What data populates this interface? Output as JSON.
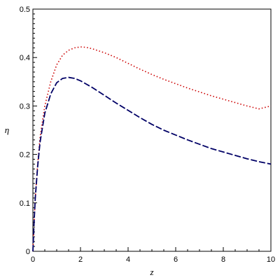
{
  "chart_data": {
    "type": "line",
    "title": "",
    "xlabel": "z",
    "ylabel": "η",
    "xlim": [
      0,
      10
    ],
    "ylim": [
      0,
      0.5
    ],
    "x_ticks": [
      "0",
      "2",
      "4",
      "6",
      "8",
      "10"
    ],
    "y_ticks": [
      "0",
      "0.1",
      "0.2",
      "0.3",
      "0.4",
      "0.5"
    ],
    "grid": false,
    "legend": "none",
    "series": [
      {
        "style": "dotted",
        "color": "#cc0000",
        "x": [
          0,
          0.05,
          0.1,
          0.2,
          0.3,
          0.5,
          0.75,
          1.0,
          1.25,
          1.5,
          1.75,
          2.0,
          2.25,
          2.5,
          3.0,
          3.5,
          4.0,
          4.5,
          5.0,
          5.5,
          6.0,
          6.5,
          7.0,
          7.5,
          8.0,
          8.5,
          9.0,
          9.5,
          10.0
        ],
        "y": [
          0.0,
          0.06,
          0.11,
          0.18,
          0.235,
          0.3,
          0.35,
          0.385,
          0.405,
          0.415,
          0.42,
          0.422,
          0.421,
          0.418,
          0.41,
          0.4,
          0.388,
          0.376,
          0.365,
          0.355,
          0.346,
          0.337,
          0.329,
          0.321,
          0.314,
          0.307,
          0.3,
          0.294,
          0.3
        ]
      },
      {
        "style": "dashed",
        "color": "#000066",
        "x": [
          0,
          0.05,
          0.1,
          0.2,
          0.3,
          0.5,
          0.75,
          1.0,
          1.25,
          1.5,
          1.75,
          2.0,
          2.5,
          3.0,
          3.5,
          4.0,
          4.5,
          5.0,
          5.5,
          6.0,
          6.5,
          7.0,
          7.5,
          8.0,
          8.5,
          9.0,
          9.5,
          10.0
        ],
        "y": [
          0.0,
          0.06,
          0.11,
          0.175,
          0.225,
          0.285,
          0.325,
          0.348,
          0.357,
          0.359,
          0.357,
          0.352,
          0.338,
          0.322,
          0.306,
          0.291,
          0.276,
          0.262,
          0.25,
          0.24,
          0.23,
          0.221,
          0.212,
          0.205,
          0.198,
          0.191,
          0.185,
          0.18
        ]
      }
    ]
  }
}
